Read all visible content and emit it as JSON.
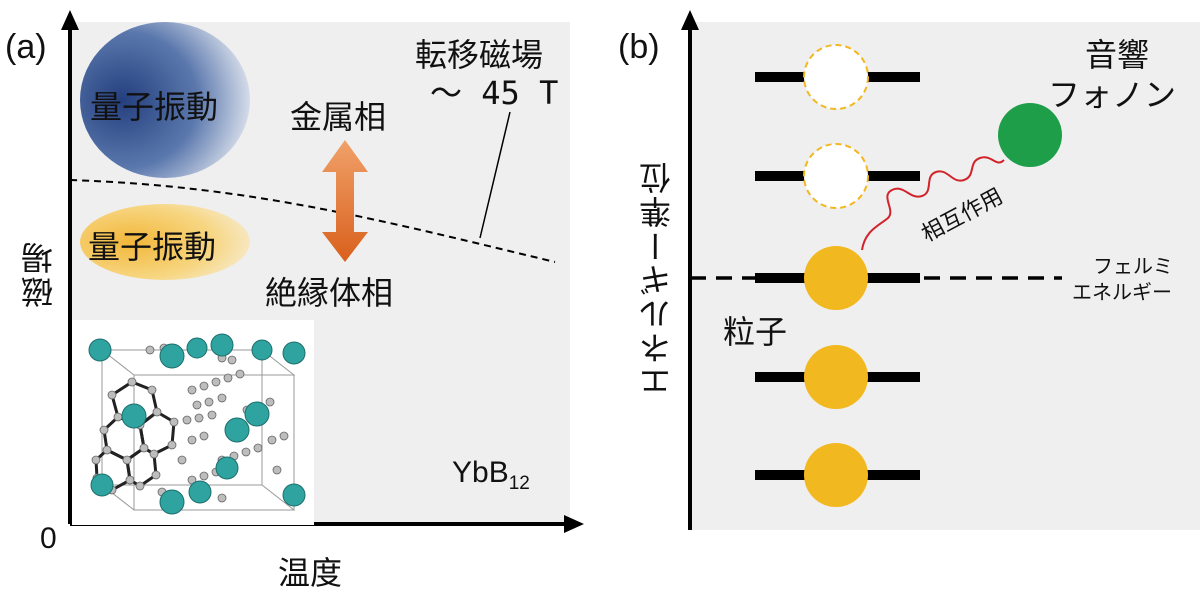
{
  "panel_a": {
    "label": "(a)",
    "y_axis_label": "磁場",
    "x_axis_label": "温度",
    "origin_label": "0",
    "region_upper_label": "量子振動",
    "region_lower_label": "量子振動",
    "phase_metal_label": "金属相",
    "phase_insulator_label": "絶縁体相",
    "transition_field_label_line1": "転移磁場",
    "transition_field_label_line2": "～ 45 T",
    "material_label": "YbB",
    "material_subscript": "12",
    "colors": {
      "background": "#efefef",
      "arrow": "#e0782c",
      "upper_blob": "#2f4a86",
      "lower_blob": "#f3c24d"
    }
  },
  "panel_b": {
    "label": "(b)",
    "y_axis_label": "エネルギー準位",
    "phonon_label_line1": "音響",
    "phonon_label_line2": "フォノン",
    "interaction_label": "相互作用",
    "fermi_label_line1": "フェルミ",
    "fermi_label_line2": "エネルギー",
    "particle_label": "粒子",
    "colors": {
      "background": "#efefef",
      "particle": "#f2b81f",
      "phonon": "#1f9e4a",
      "wave": "#d0232a",
      "empty_outline": "#f2b81f"
    }
  }
}
